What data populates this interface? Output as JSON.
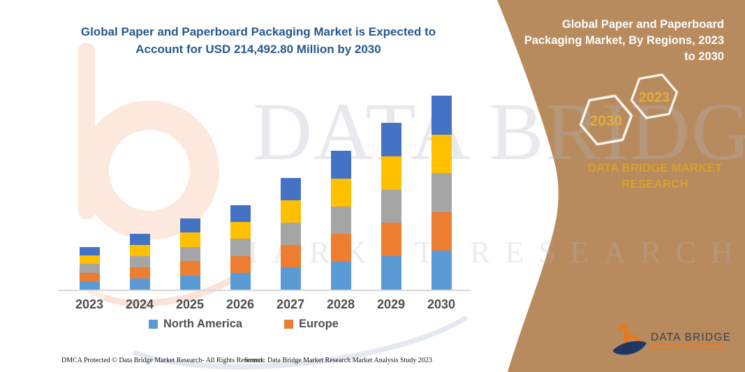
{
  "left_panel": {
    "title_lines": [
      "Global Paper and Paperboard Packaging Market is Expected to",
      "Account for USD 214,492.80 Million by 2030"
    ]
  },
  "chart_data": {
    "type": "bar",
    "stacked": true,
    "title": "Global Paper and Paperboard Packaging Market is Expected to Account for USD 214,492.80 Million by 2030",
    "unit": "USD Million (estimated from bar heights; 2030 total = 214,492.80)",
    "categories": [
      "2023",
      "2024",
      "2025",
      "2026",
      "2027",
      "2028",
      "2029",
      "2030"
    ],
    "series": [
      {
        "name": "North America",
        "color": "#5B9BD5",
        "values": [
          9413,
          12345,
          15740,
          18672,
          24691,
          30709,
          36882,
          42899
        ]
      },
      {
        "name": "Europe",
        "color": "#ED7D31",
        "values": [
          9413,
          12345,
          15740,
          18672,
          24691,
          30709,
          36882,
          42899
        ]
      },
      {
        "name": "Unlabeled (gray)",
        "color": "#A5A5A5",
        "values": [
          9413,
          12345,
          15740,
          18672,
          24691,
          30709,
          36882,
          42899
        ]
      },
      {
        "name": "Unlabeled (yellow)",
        "color": "#FFC000",
        "values": [
          9413,
          12345,
          15740,
          18672,
          24691,
          30709,
          36882,
          42899
        ]
      },
      {
        "name": "Unlabeled (blue)",
        "color": "#4472C4",
        "values": [
          9413,
          12345,
          15740,
          18672,
          24691,
          30709,
          36882,
          42899
        ]
      }
    ],
    "totals_estimated": [
      47066,
      61725,
      78700,
      93360,
      123453,
      153544,
      184408,
      214492.8
    ],
    "legend": [
      {
        "label": "North America",
        "color": "#5B9BD5"
      },
      {
        "label": "Europe",
        "color": "#ED7D31"
      }
    ],
    "legend_position": "bottom",
    "y_axis_visible": false,
    "grid": false,
    "ylim": [
      0,
      220000
    ]
  },
  "watermark": {
    "line1": "DATA BRIDGE",
    "line2": "MARKET RESEARCH"
  },
  "right_panel": {
    "title_lines": [
      "Global Paper and Paperboard",
      "Packaging Market, By Regions, 2023",
      "to 2030"
    ],
    "hexagons": [
      {
        "label": "2030"
      },
      {
        "label": "2023"
      }
    ],
    "caption_lines": [
      "DATA BRIDGE MARKET",
      "RESEARCH"
    ],
    "logo": {
      "brand": "DATA BRIDGE",
      "tagline": "MARKET RESEARCH"
    }
  },
  "footer": {
    "dmca": "DMCA Protected © Data Bridge Market Research-  All Rights Reserved.",
    "source": "Source: Data Bridge Market Research  Market Analysis Study 2023"
  },
  "colors": {
    "panel_brown": "#B88B5E",
    "hexagon_stroke": "#F7F3EC",
    "gold_text": "#D5A02F",
    "title_blue": "#26588C",
    "axis_gray": "#D9D9D9",
    "label_gray": "#4D4D4D",
    "logo_orange": "#E87722",
    "logo_navy": "#1E3765",
    "watermark_peach": "#FCE8DD"
  }
}
